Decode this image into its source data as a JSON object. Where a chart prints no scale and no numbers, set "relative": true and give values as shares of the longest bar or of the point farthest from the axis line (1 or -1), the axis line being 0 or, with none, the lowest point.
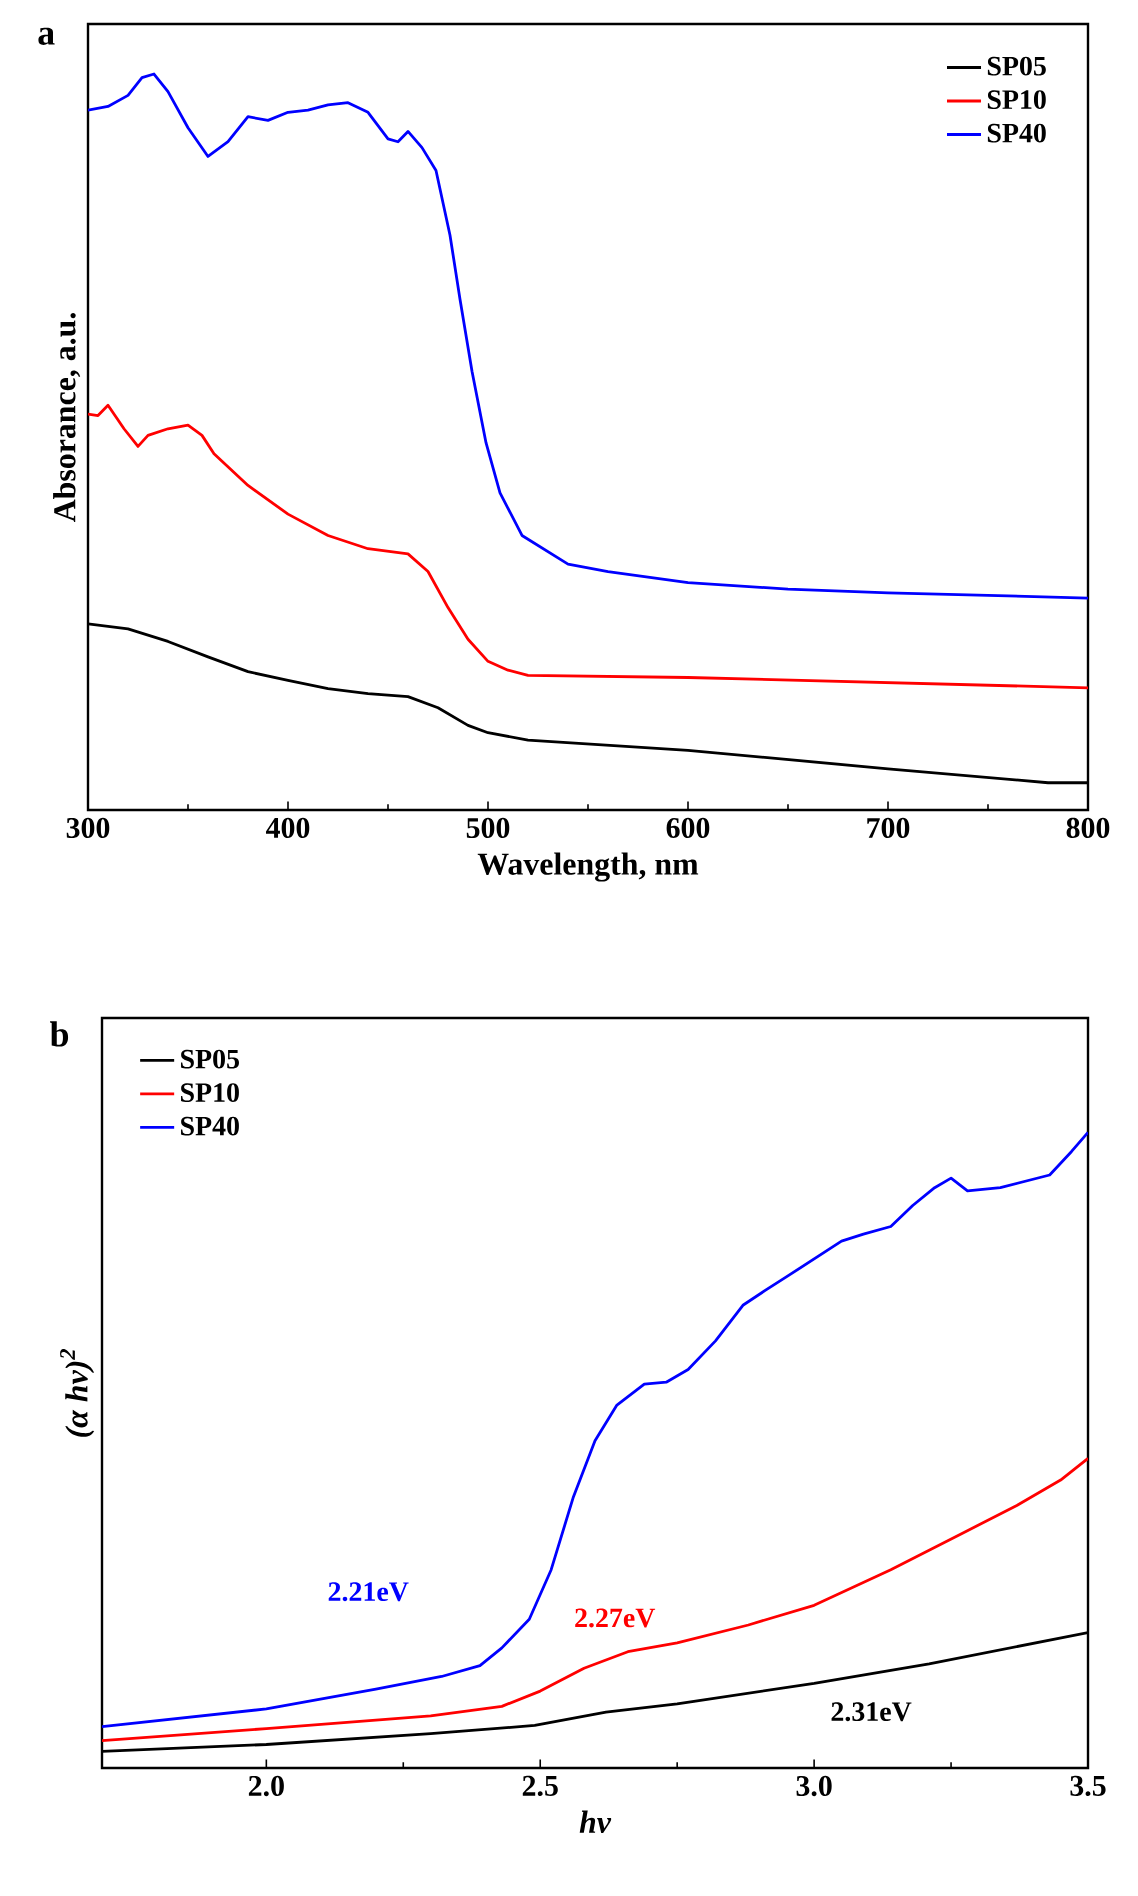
{
  "chart_data": [
    {
      "type": "line",
      "title": "a",
      "xlabel": "Wavelength, nm",
      "ylabel": "Absorance, a.u.",
      "relative": true,
      "xlim": [
        300,
        800
      ],
      "xticks": [
        300,
        400,
        500,
        600,
        700,
        800
      ],
      "tick_labels": "x",
      "legend": "top right",
      "series": [
        {
          "name": "SP05",
          "color": "#000000",
          "x": [
            300,
            320,
            340,
            360,
            380,
            400,
            420,
            440,
            460,
            475,
            490,
            500,
            520,
            600,
            700,
            780,
            800
          ],
          "values": [
            0.253,
            0.246,
            0.229,
            0.208,
            0.188,
            0.176,
            0.165,
            0.158,
            0.154,
            0.139,
            0.115,
            0.105,
            0.095,
            0.081,
            0.056,
            0.037,
            0.037
          ]
        },
        {
          "name": "SP10",
          "color": "#ff0000",
          "x": [
            300,
            305,
            310,
            318,
            325,
            330,
            340,
            350,
            357,
            363,
            380,
            400,
            420,
            440,
            460,
            470,
            480,
            490,
            500,
            510,
            520,
            600,
            700,
            800
          ],
          "values": [
            0.538,
            0.536,
            0.55,
            0.518,
            0.494,
            0.509,
            0.518,
            0.523,
            0.509,
            0.484,
            0.441,
            0.402,
            0.373,
            0.355,
            0.348,
            0.324,
            0.275,
            0.232,
            0.202,
            0.19,
            0.183,
            0.18,
            0.173,
            0.166
          ]
        },
        {
          "name": "SP40",
          "color": "#0000ff",
          "x": [
            300,
            310,
            320,
            327,
            333,
            340,
            350,
            360,
            370,
            380,
            390,
            400,
            410,
            420,
            430,
            440,
            450,
            455,
            460,
            467,
            474,
            481,
            486,
            492,
            499,
            506,
            517,
            540,
            560,
            600,
            650,
            700,
            800
          ],
          "values": [
            0.951,
            0.956,
            0.971,
            0.995,
            1.0,
            0.976,
            0.927,
            0.888,
            0.908,
            0.942,
            0.937,
            0.948,
            0.951,
            0.958,
            0.961,
            0.948,
            0.912,
            0.908,
            0.922,
            0.9,
            0.869,
            0.781,
            0.694,
            0.596,
            0.499,
            0.431,
            0.373,
            0.334,
            0.324,
            0.309,
            0.3,
            0.295,
            0.288
          ]
        }
      ]
    },
    {
      "type": "line",
      "title": "b",
      "xlabel": "hv",
      "ylabel": "(α hv)$^{2}$",
      "relative": true,
      "xlim": [
        1.7,
        3.5
      ],
      "xticks": [
        {
          "value": 2.0,
          "label": "2.0"
        },
        {
          "value": 2.5,
          "label": "2.5"
        },
        {
          "value": 3.0,
          "label": "3.0"
        },
        {
          "value": 3.5,
          "label": "3.5"
        }
      ],
      "tick_labels": "x",
      "legend": "top left",
      "annotations": [
        "2.21eV",
        "2.27eV",
        "2.31eV"
      ],
      "series": [
        {
          "name": "SP05",
          "color": "#000000",
          "x": [
            1.7,
            2.0,
            2.3,
            2.49,
            2.62,
            2.75,
            3.0,
            3.21,
            3.5
          ],
          "values": [
            0.026,
            0.037,
            0.054,
            0.067,
            0.088,
            0.101,
            0.133,
            0.164,
            0.213
          ]
        },
        {
          "name": "SP10",
          "color": "#ff0000",
          "x": [
            1.7,
            2.0,
            2.3,
            2.43,
            2.5,
            2.58,
            2.66,
            2.75,
            2.88,
            3.0,
            3.14,
            3.27,
            3.37,
            3.45,
            3.5
          ],
          "values": [
            0.043,
            0.062,
            0.082,
            0.097,
            0.121,
            0.157,
            0.183,
            0.197,
            0.225,
            0.256,
            0.312,
            0.369,
            0.413,
            0.453,
            0.487
          ]
        },
        {
          "name": "SP40",
          "color": "#0000ff",
          "x": [
            1.7,
            2.0,
            2.2,
            2.32,
            2.39,
            2.43,
            2.48,
            2.52,
            2.56,
            2.6,
            2.64,
            2.69,
            2.73,
            2.77,
            2.82,
            2.87,
            2.91,
            2.95,
            3.0,
            3.05,
            3.09,
            3.14,
            3.18,
            3.22,
            3.25,
            3.28,
            3.34,
            3.43,
            3.47,
            3.5
          ],
          "values": [
            0.065,
            0.093,
            0.124,
            0.144,
            0.161,
            0.189,
            0.234,
            0.312,
            0.425,
            0.515,
            0.571,
            0.604,
            0.607,
            0.627,
            0.672,
            0.728,
            0.751,
            0.773,
            0.801,
            0.829,
            0.84,
            0.852,
            0.885,
            0.913,
            0.928,
            0.908,
            0.913,
            0.933,
            0.97,
            1.0
          ]
        }
      ]
    }
  ]
}
